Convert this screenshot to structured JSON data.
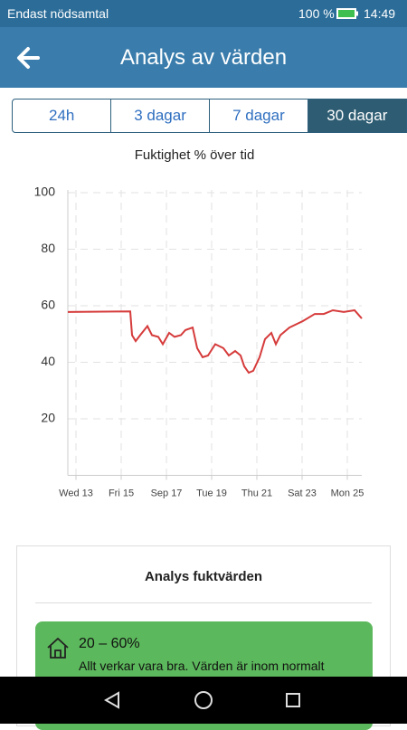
{
  "status_bar": {
    "carrier": "Endast nödsamtal",
    "battery": "100 %",
    "time": "14:49"
  },
  "header": {
    "title": "Analys av värden"
  },
  "tabs": {
    "items": [
      "24h",
      "3 dagar",
      "7 dagar",
      "30 dagar"
    ],
    "active": 3
  },
  "chart_data": {
    "type": "line",
    "title": "Fuktighet % över tid",
    "series": [
      {
        "name": "Fuktighet",
        "color": "#d63b3b",
        "x": [
          12.64,
          15.4,
          15.48,
          15.64,
          15.84,
          16.16,
          16.36,
          16.64,
          16.84,
          17.12,
          17.36,
          17.64,
          17.84,
          18.16,
          18.36,
          18.6,
          18.84,
          19.16,
          19.52,
          19.76,
          20.04,
          20.28,
          20.44,
          20.64,
          20.84,
          21.12,
          21.36,
          21.64,
          21.84,
          22.04,
          22.44,
          23.04,
          23.56,
          23.96,
          24.36,
          24.84,
          25.32,
          25.64
        ],
        "values": [
          57.8,
          58,
          49.6,
          47.5,
          49.6,
          52.8,
          49.6,
          49,
          46.4,
          50.4,
          49,
          49.6,
          51.4,
          52.3,
          45,
          41.8,
          42.4,
          46.4,
          45,
          42.4,
          44,
          42.4,
          38.6,
          36.3,
          37,
          41.8,
          48.2,
          50.4,
          46.4,
          49.6,
          52.3,
          54.6,
          57.1,
          57.1,
          58.4,
          57.8,
          58.4,
          55.5
        ]
      }
    ],
    "xlim": [
      12.64,
      25.64
    ],
    "xticks": [
      {
        "value": 13,
        "label": "Wed 13"
      },
      {
        "value": 15,
        "label": "Fri 15"
      },
      {
        "value": 17,
        "label": "Sep 17"
      },
      {
        "value": 19,
        "label": "Tue 19"
      },
      {
        "value": 21,
        "label": "Thu 21"
      },
      {
        "value": 23,
        "label": "Sat 23"
      },
      {
        "value": 25,
        "label": "Mon 25"
      }
    ],
    "ylim": [
      0,
      100
    ],
    "yticks": [
      20,
      40,
      60,
      80,
      100
    ],
    "grid": true
  },
  "card": {
    "title": "Analys fuktvärden",
    "range": "20 – 60%",
    "text": "Allt verkar vara bra. Värden är inom normalt intervall."
  }
}
